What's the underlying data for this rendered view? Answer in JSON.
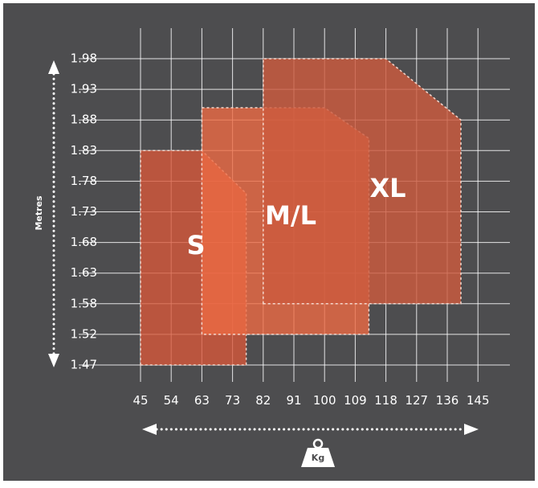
{
  "chart_data": {
    "type": "area",
    "title": "",
    "xlabel": "Kg",
    "ylabel": "Metres",
    "x_ticks": [
      "45",
      "54",
      "63",
      "73",
      "82",
      "91",
      "100",
      "109",
      "118",
      "127",
      "136",
      "145"
    ],
    "y_ticks": [
      "1.98",
      "1.93",
      "1.88",
      "1.83",
      "1.78",
      "1.73",
      "1.68",
      "1.63",
      "1.58",
      "1.52",
      "1.47"
    ],
    "grid": true,
    "legend": "none",
    "background_color": "#4d4d4f",
    "series": [
      {
        "name": "S",
        "color": "#d9573a",
        "opacity": 0.78,
        "polygon": [
          [
            45,
            1.47
          ],
          [
            45,
            1.83
          ],
          [
            63,
            1.83
          ],
          [
            77,
            1.76
          ],
          [
            77,
            1.47
          ]
        ]
      },
      {
        "name": "M/L",
        "color": "#ec6a44",
        "opacity": 0.8,
        "polygon": [
          [
            63,
            1.52
          ],
          [
            63,
            1.9
          ],
          [
            100,
            1.9
          ],
          [
            113,
            1.85
          ],
          [
            113,
            1.52
          ]
        ]
      },
      {
        "name": "XL",
        "color": "#cc5a3e",
        "opacity": 0.82,
        "polygon": [
          [
            82,
            1.58
          ],
          [
            82,
            1.98
          ],
          [
            118,
            1.98
          ],
          [
            140,
            1.88
          ],
          [
            140,
            1.58
          ]
        ]
      }
    ]
  }
}
